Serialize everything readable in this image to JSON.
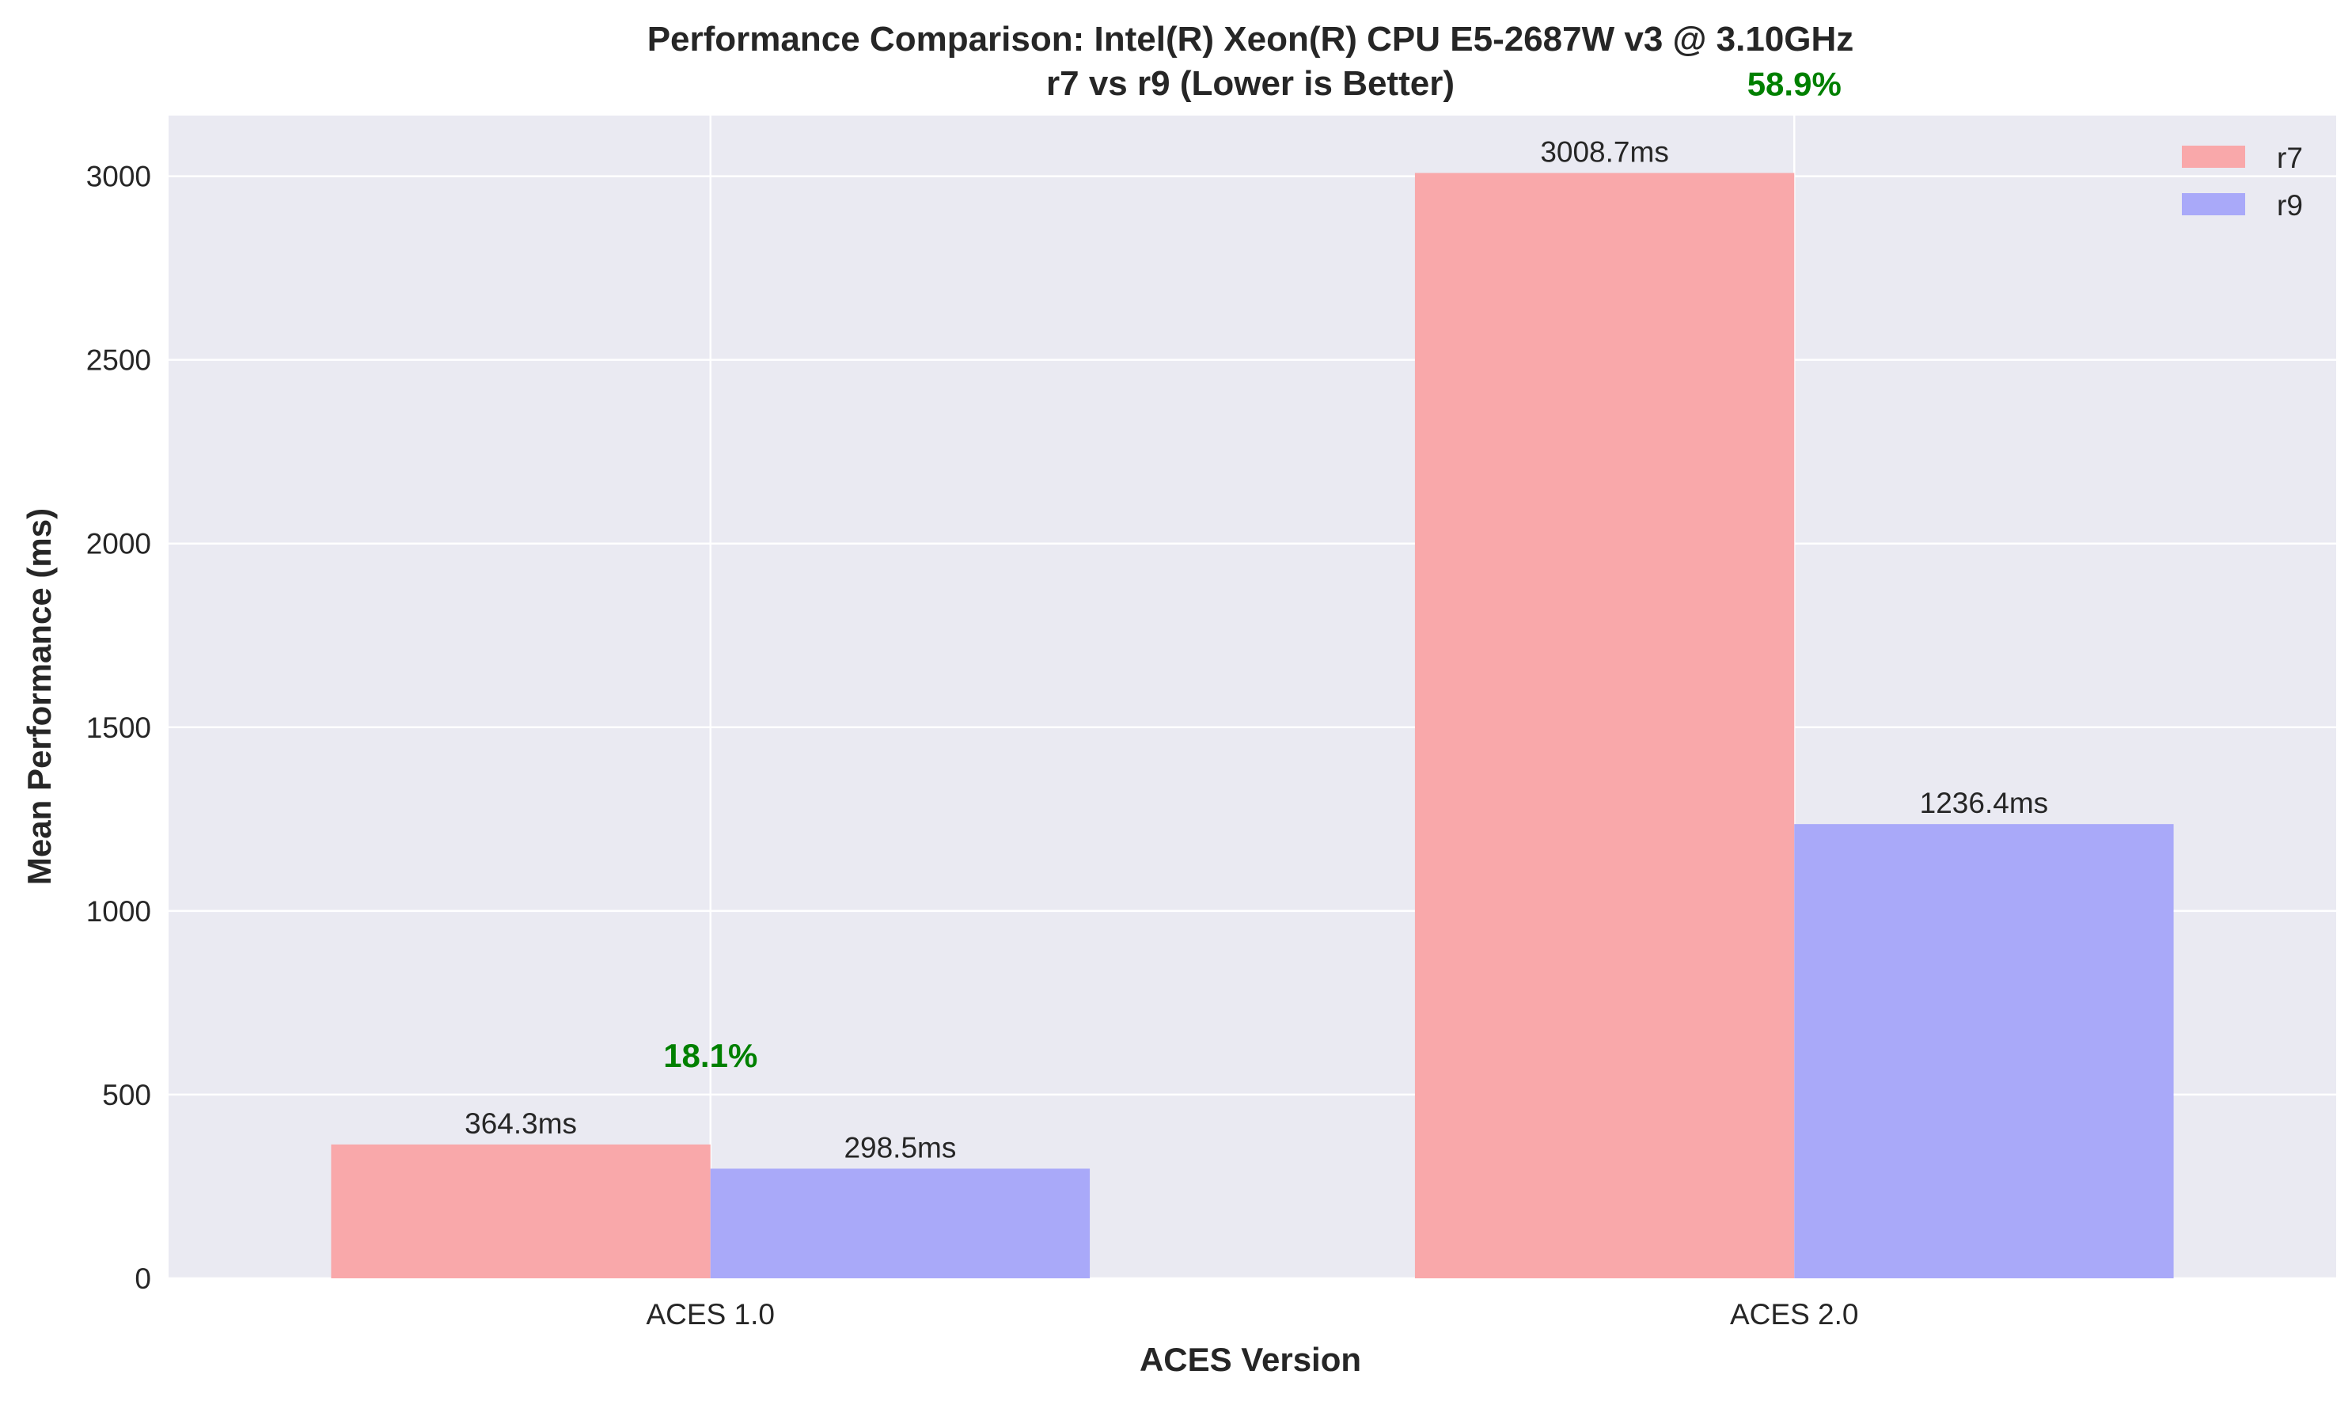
{
  "chart_data": {
    "type": "bar",
    "title": "Performance Comparison: Intel(R) Xeon(R) CPU E5-2687W v3 @ 3.10GHz",
    "subtitle": "r7 vs r9 (Lower is Better)",
    "xlabel": "ACES Version",
    "ylabel": "Mean Performance (ms)",
    "categories": [
      "ACES 1.0",
      "ACES 2.0"
    ],
    "series": [
      {
        "name": "r7",
        "values": [
          364.3,
          3008.7
        ],
        "labels": [
          "364.3ms",
          "3008.7ms"
        ],
        "color": "#f9a8aa"
      },
      {
        "name": "r9",
        "values": [
          298.5,
          1236.4
        ],
        "labels": [
          "298.5ms",
          "1236.4ms"
        ],
        "color": "#a9a9f9"
      }
    ],
    "improvement_labels": [
      "18.1%",
      "58.9%"
    ],
    "improvement_color": "#008000",
    "ylim": [
      0,
      3165
    ],
    "yticks": [
      0,
      500,
      1000,
      1500,
      2000,
      2500,
      3000
    ],
    "grid": true,
    "legend_position": "top-right",
    "background_color": "#eaeaf2"
  }
}
